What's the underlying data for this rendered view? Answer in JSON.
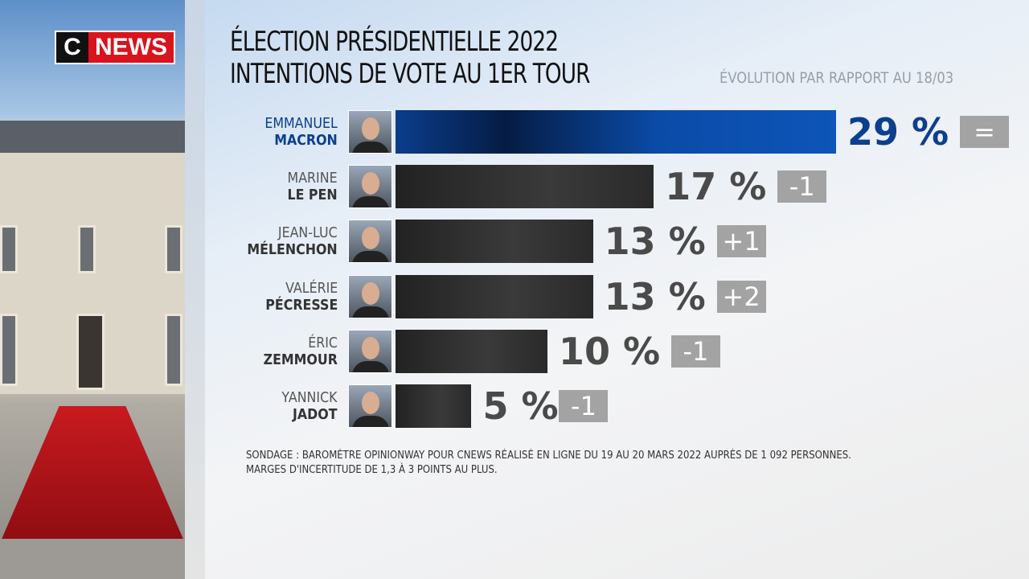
{
  "brand": {
    "logo_c": "C",
    "logo_text": "NEWS"
  },
  "header": {
    "title_line1": "ÉLECTION PRÉSIDENTIELLE 2022",
    "title_line2": "INTENTIONS DE VOTE AU 1ER TOUR",
    "subtitle": "ÉVOLUTION PAR RAPPORT AU 18/03"
  },
  "chart_data": {
    "type": "bar",
    "orientation": "horizontal",
    "unit": "%",
    "title": "ÉLECTION PRÉSIDENTIELLE 2022 — INTENTIONS DE VOTE AU 1ER TOUR",
    "highlight_color": "#0c3f8e",
    "bar_color": "#2e2e2e",
    "categories": [
      {
        "first": "EMMANUEL",
        "last": "MACRON",
        "value": 29,
        "label": "29 %",
        "evolution": "=",
        "highlight": true
      },
      {
        "first": "MARINE",
        "last": "LE PEN",
        "value": 17,
        "label": "17 %",
        "evolution": "-1"
      },
      {
        "first": "JEAN-LUC",
        "last": "MÉLENCHON",
        "value": 13,
        "label": "13 %",
        "evolution": "+1"
      },
      {
        "first": "VALÉRIE",
        "last": "PÉCRESSE",
        "value": 13,
        "label": "13 %",
        "evolution": "+2"
      },
      {
        "first": "ÉRIC",
        "last": "ZEMMOUR",
        "value": 10,
        "label": "10 %",
        "evolution": "-1"
      },
      {
        "first": "YANNICK",
        "last": "JADOT",
        "value": 5,
        "label": "5 %",
        "evolution": "-1"
      }
    ]
  },
  "footer": {
    "source_line1": "SONDAGE : BAROMÈTRE OPINIONWAY POUR CNEWS RÉALISÉ EN LIGNE DU 19 AU 20 MARS 2022 AUPRÈS DE 1 092 PERSONNES.",
    "source_line2": "MARGES D'INCERTITUDE DE 1,3 À 3 POINTS AU PLUS."
  }
}
